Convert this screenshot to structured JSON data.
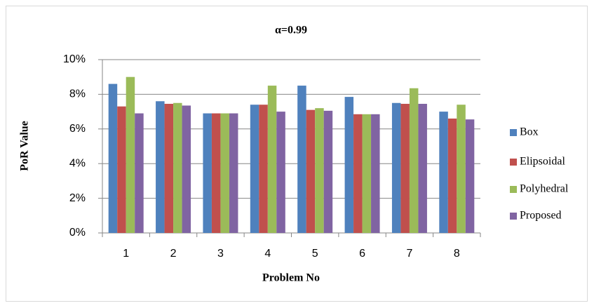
{
  "chart_data": {
    "type": "bar",
    "title": "α=0.99",
    "x_label": "Problem No",
    "y_label": "PoR Value",
    "categories": [
      "1",
      "2",
      "3",
      "4",
      "5",
      "6",
      "7",
      "8"
    ],
    "series": [
      {
        "name": "Box",
        "color": "#4f81bd",
        "values": [
          8.6,
          7.6,
          6.9,
          7.4,
          8.5,
          7.85,
          7.5,
          7.0
        ]
      },
      {
        "name": "Elipsoidal",
        "color": "#c0504d",
        "values": [
          7.3,
          7.45,
          6.9,
          7.4,
          7.1,
          6.85,
          7.45,
          6.6
        ]
      },
      {
        "name": "Polyhedral",
        "color": "#9bbb59",
        "values": [
          9.0,
          7.5,
          6.9,
          8.5,
          7.2,
          6.85,
          8.35,
          7.4
        ]
      },
      {
        "name": "Proposed",
        "color": "#8064a2",
        "values": [
          6.9,
          7.35,
          6.9,
          7.0,
          7.05,
          6.85,
          7.45,
          6.55
        ]
      }
    ],
    "ylim": [
      0,
      10
    ],
    "yticks": [
      {
        "value": 0,
        "label": "0%"
      },
      {
        "value": 2,
        "label": "2%"
      },
      {
        "value": 4,
        "label": "4%"
      },
      {
        "value": 6,
        "label": "6%"
      },
      {
        "value": 8,
        "label": "8%"
      },
      {
        "value": 10,
        "label": "10%"
      }
    ],
    "grid": true,
    "legend": "right"
  }
}
